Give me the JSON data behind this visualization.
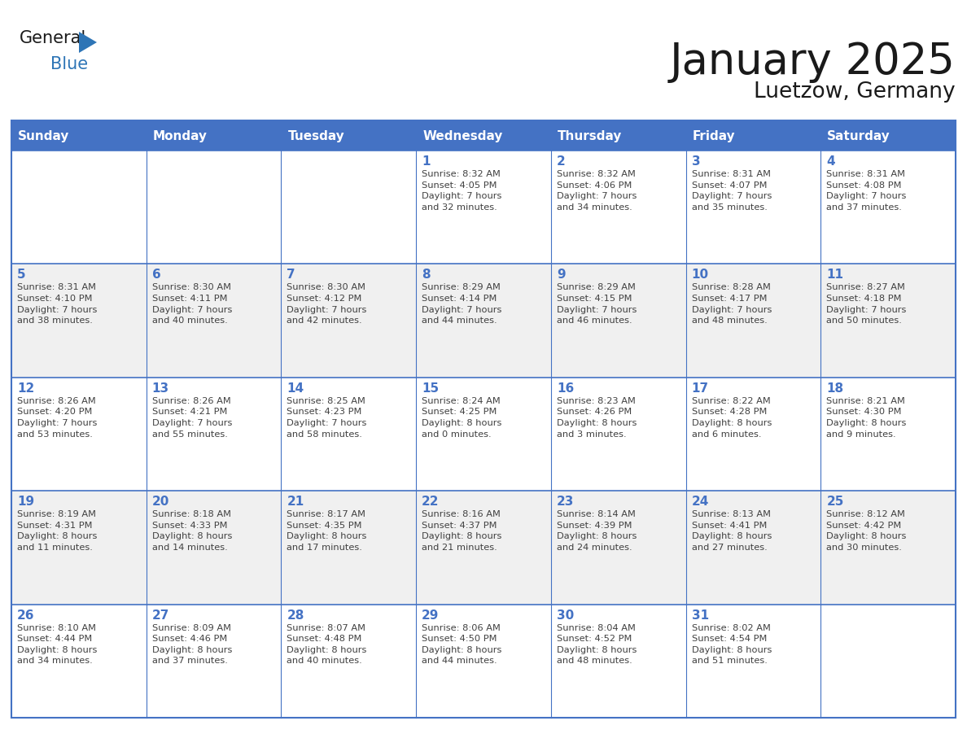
{
  "title": "January 2025",
  "subtitle": "Luetzow, Germany",
  "days_of_week": [
    "Sunday",
    "Monday",
    "Tuesday",
    "Wednesday",
    "Thursday",
    "Friday",
    "Saturday"
  ],
  "header_bg": "#4472C4",
  "header_text": "#FFFFFF",
  "cell_bg_light": "#FFFFFF",
  "cell_bg_alt": "#F0F0F0",
  "border_color": "#4472C4",
  "line_color": "#4472C4",
  "day_number_color": "#4472C4",
  "text_color": "#404040",
  "title_color": "#1a1a1a",
  "logo_text_color": "#1a1a1a",
  "logo_blue_color": "#2E75B6",
  "calendar": [
    [
      {
        "day": "",
        "info": ""
      },
      {
        "day": "",
        "info": ""
      },
      {
        "day": "",
        "info": ""
      },
      {
        "day": "1",
        "info": "Sunrise: 8:32 AM\nSunset: 4:05 PM\nDaylight: 7 hours\nand 32 minutes."
      },
      {
        "day": "2",
        "info": "Sunrise: 8:32 AM\nSunset: 4:06 PM\nDaylight: 7 hours\nand 34 minutes."
      },
      {
        "day": "3",
        "info": "Sunrise: 8:31 AM\nSunset: 4:07 PM\nDaylight: 7 hours\nand 35 minutes."
      },
      {
        "day": "4",
        "info": "Sunrise: 8:31 AM\nSunset: 4:08 PM\nDaylight: 7 hours\nand 37 minutes."
      }
    ],
    [
      {
        "day": "5",
        "info": "Sunrise: 8:31 AM\nSunset: 4:10 PM\nDaylight: 7 hours\nand 38 minutes."
      },
      {
        "day": "6",
        "info": "Sunrise: 8:30 AM\nSunset: 4:11 PM\nDaylight: 7 hours\nand 40 minutes."
      },
      {
        "day": "7",
        "info": "Sunrise: 8:30 AM\nSunset: 4:12 PM\nDaylight: 7 hours\nand 42 minutes."
      },
      {
        "day": "8",
        "info": "Sunrise: 8:29 AM\nSunset: 4:14 PM\nDaylight: 7 hours\nand 44 minutes."
      },
      {
        "day": "9",
        "info": "Sunrise: 8:29 AM\nSunset: 4:15 PM\nDaylight: 7 hours\nand 46 minutes."
      },
      {
        "day": "10",
        "info": "Sunrise: 8:28 AM\nSunset: 4:17 PM\nDaylight: 7 hours\nand 48 minutes."
      },
      {
        "day": "11",
        "info": "Sunrise: 8:27 AM\nSunset: 4:18 PM\nDaylight: 7 hours\nand 50 minutes."
      }
    ],
    [
      {
        "day": "12",
        "info": "Sunrise: 8:26 AM\nSunset: 4:20 PM\nDaylight: 7 hours\nand 53 minutes."
      },
      {
        "day": "13",
        "info": "Sunrise: 8:26 AM\nSunset: 4:21 PM\nDaylight: 7 hours\nand 55 minutes."
      },
      {
        "day": "14",
        "info": "Sunrise: 8:25 AM\nSunset: 4:23 PM\nDaylight: 7 hours\nand 58 minutes."
      },
      {
        "day": "15",
        "info": "Sunrise: 8:24 AM\nSunset: 4:25 PM\nDaylight: 8 hours\nand 0 minutes."
      },
      {
        "day": "16",
        "info": "Sunrise: 8:23 AM\nSunset: 4:26 PM\nDaylight: 8 hours\nand 3 minutes."
      },
      {
        "day": "17",
        "info": "Sunrise: 8:22 AM\nSunset: 4:28 PM\nDaylight: 8 hours\nand 6 minutes."
      },
      {
        "day": "18",
        "info": "Sunrise: 8:21 AM\nSunset: 4:30 PM\nDaylight: 8 hours\nand 9 minutes."
      }
    ],
    [
      {
        "day": "19",
        "info": "Sunrise: 8:19 AM\nSunset: 4:31 PM\nDaylight: 8 hours\nand 11 minutes."
      },
      {
        "day": "20",
        "info": "Sunrise: 8:18 AM\nSunset: 4:33 PM\nDaylight: 8 hours\nand 14 minutes."
      },
      {
        "day": "21",
        "info": "Sunrise: 8:17 AM\nSunset: 4:35 PM\nDaylight: 8 hours\nand 17 minutes."
      },
      {
        "day": "22",
        "info": "Sunrise: 8:16 AM\nSunset: 4:37 PM\nDaylight: 8 hours\nand 21 minutes."
      },
      {
        "day": "23",
        "info": "Sunrise: 8:14 AM\nSunset: 4:39 PM\nDaylight: 8 hours\nand 24 minutes."
      },
      {
        "day": "24",
        "info": "Sunrise: 8:13 AM\nSunset: 4:41 PM\nDaylight: 8 hours\nand 27 minutes."
      },
      {
        "day": "25",
        "info": "Sunrise: 8:12 AM\nSunset: 4:42 PM\nDaylight: 8 hours\nand 30 minutes."
      }
    ],
    [
      {
        "day": "26",
        "info": "Sunrise: 8:10 AM\nSunset: 4:44 PM\nDaylight: 8 hours\nand 34 minutes."
      },
      {
        "day": "27",
        "info": "Sunrise: 8:09 AM\nSunset: 4:46 PM\nDaylight: 8 hours\nand 37 minutes."
      },
      {
        "day": "28",
        "info": "Sunrise: 8:07 AM\nSunset: 4:48 PM\nDaylight: 8 hours\nand 40 minutes."
      },
      {
        "day": "29",
        "info": "Sunrise: 8:06 AM\nSunset: 4:50 PM\nDaylight: 8 hours\nand 44 minutes."
      },
      {
        "day": "30",
        "info": "Sunrise: 8:04 AM\nSunset: 4:52 PM\nDaylight: 8 hours\nand 48 minutes."
      },
      {
        "day": "31",
        "info": "Sunrise: 8:02 AM\nSunset: 4:54 PM\nDaylight: 8 hours\nand 51 minutes."
      },
      {
        "day": "",
        "info": ""
      }
    ]
  ]
}
